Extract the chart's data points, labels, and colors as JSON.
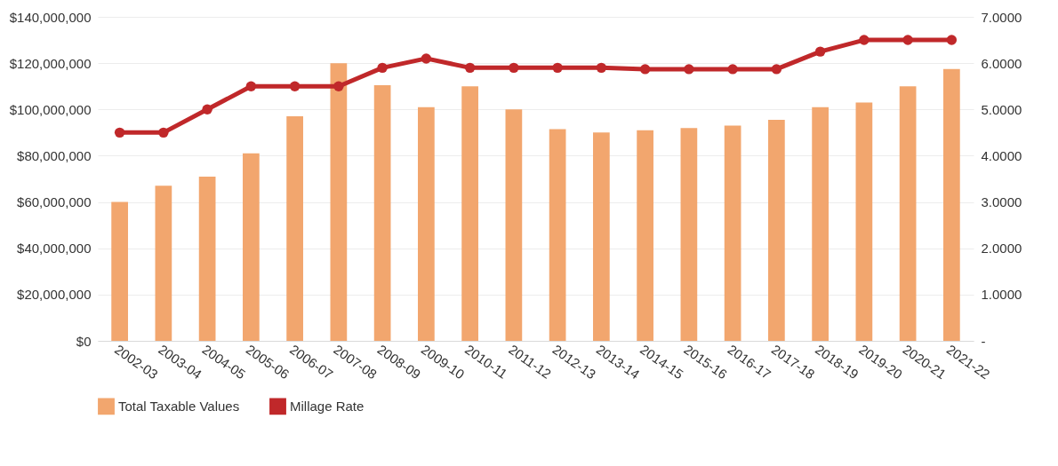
{
  "chart_data": {
    "type": "bar",
    "categories": [
      "2002-03",
      "2003-04",
      "2004-05",
      "2005-06",
      "2006-07",
      "2007-08",
      "2008-09",
      "2009-10",
      "2010-11",
      "2011-12",
      "2012-13",
      "2013-14",
      "2014-15",
      "2015-16",
      "2016-17",
      "2017-18",
      "2018-19",
      "2019-20",
      "2020-21",
      "2021-22"
    ],
    "series": [
      {
        "name": "Total Taxable Values",
        "color": "#f2a66e",
        "values": [
          60000000,
          67000000,
          71000000,
          81000000,
          97000000,
          120000000,
          110500000,
          101000000,
          110000000,
          100000000,
          91500000,
          90000000,
          91000000,
          92000000,
          93000000,
          95500000,
          101000000,
          103000000,
          110000000,
          117500000
        ]
      },
      {
        "name": "Millage Rate",
        "type": "line",
        "axis": "y2",
        "color": "#c0282a",
        "marker": "circle",
        "values": [
          4.5,
          4.5,
          5.0,
          5.5,
          5.5,
          5.5,
          5.9,
          6.1,
          5.9,
          5.9,
          5.9,
          5.9,
          5.87,
          5.87,
          5.87,
          5.87,
          6.25,
          6.5,
          6.5,
          6.5
        ]
      }
    ],
    "ylim": [
      0,
      140000000
    ],
    "yticks": [
      {
        "value": 0,
        "label": "$0"
      },
      {
        "value": 20000000,
        "label": "$20,000,000"
      },
      {
        "value": 40000000,
        "label": "$40,000,000"
      },
      {
        "value": 60000000,
        "label": "$60,000,000"
      },
      {
        "value": 80000000,
        "label": "$80,000,000"
      },
      {
        "value": 100000000,
        "label": "$100,000,000"
      },
      {
        "value": 120000000,
        "label": "$120,000,000"
      },
      {
        "value": 140000000,
        "label": "$140,000,000"
      }
    ],
    "y2lim": [
      0,
      7
    ],
    "y2ticks": [
      {
        "value": 0,
        "label": "-"
      },
      {
        "value": 1,
        "label": "1.0000"
      },
      {
        "value": 2,
        "label": "2.0000"
      },
      {
        "value": 3,
        "label": "3.0000"
      },
      {
        "value": 4,
        "label": "4.0000"
      },
      {
        "value": 5,
        "label": "5.0000"
      },
      {
        "value": 6,
        "label": "6.0000"
      },
      {
        "value": 7,
        "label": "7.0000"
      }
    ],
    "grid": "y",
    "legend": "bottom"
  }
}
